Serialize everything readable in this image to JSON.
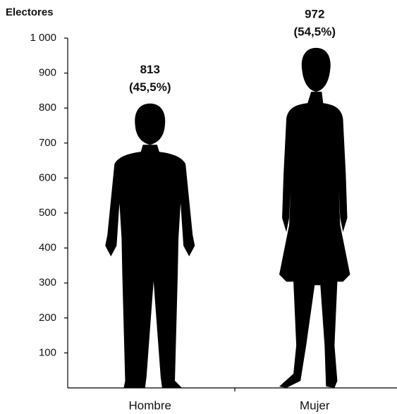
{
  "chart_data": {
    "type": "bar",
    "y_label": "Electores",
    "categories": [
      "Hombre",
      "Mujer"
    ],
    "values": [
      813,
      972
    ],
    "shares": [
      45.5,
      54.5
    ],
    "share_labels": [
      "(45,5%)",
      "(54,5%)"
    ],
    "color": "#000000",
    "ylim": [
      0,
      1000
    ],
    "yticks": [
      100,
      200,
      300,
      400,
      500,
      600,
      700,
      800,
      900,
      {
        "value": 1000,
        "label": "1 000"
      }
    ]
  }
}
